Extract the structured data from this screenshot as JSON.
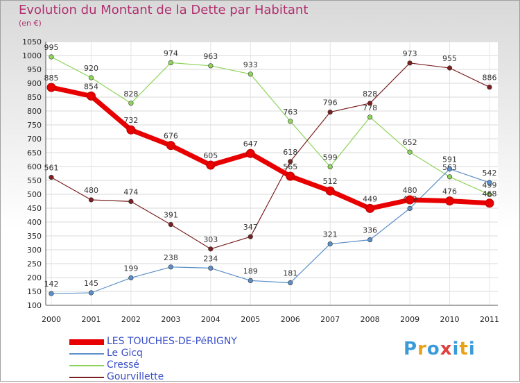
{
  "title": "Evolution du Montant de la Dette par Habitant",
  "subtitle": "(en €)",
  "logo": {
    "text": "Proxiti",
    "colors": [
      "#3a9bd9",
      "#e8a21a",
      "#3a9bd9",
      "#e04040",
      "#3a9bd9",
      "#e8a21a",
      "#3a9bd9"
    ]
  },
  "chart_data": {
    "type": "line",
    "title": "Evolution du Montant de la Dette par Habitant",
    "subtitle": "(en €)",
    "categories": [
      "2000",
      "2001",
      "2002",
      "2003",
      "2004",
      "2005",
      "2006",
      "2007",
      "2008",
      "2009",
      "2010",
      "2011"
    ],
    "ylim": [
      100,
      1050
    ],
    "yticks": [
      100,
      150,
      200,
      250,
      300,
      350,
      400,
      450,
      500,
      550,
      600,
      650,
      700,
      750,
      800,
      850,
      900,
      950,
      1000,
      1050
    ],
    "grid": true,
    "legend_position": "bottom-left",
    "series": [
      {
        "name": "LES TOUCHES-DE-PéRIGNY",
        "color": "#e80000",
        "values": [
          885,
          854,
          732,
          676,
          605,
          647,
          565,
          512,
          449,
          480,
          476,
          468
        ]
      },
      {
        "name": "Le Gicq",
        "color": "#5b8fc7",
        "values": [
          142,
          145,
          199,
          238,
          234,
          189,
          181,
          321,
          336,
          449,
          591,
          542
        ]
      },
      {
        "name": "Cressé",
        "color": "#8ed45a",
        "values": [
          995,
          920,
          828,
          974,
          963,
          933,
          763,
          599,
          778,
          652,
          563,
          499
        ]
      },
      {
        "name": "Gourvillette",
        "color": "#7a2020",
        "values": [
          561,
          480,
          474,
          391,
          303,
          347,
          618,
          796,
          828,
          973,
          955,
          886
        ]
      }
    ]
  }
}
